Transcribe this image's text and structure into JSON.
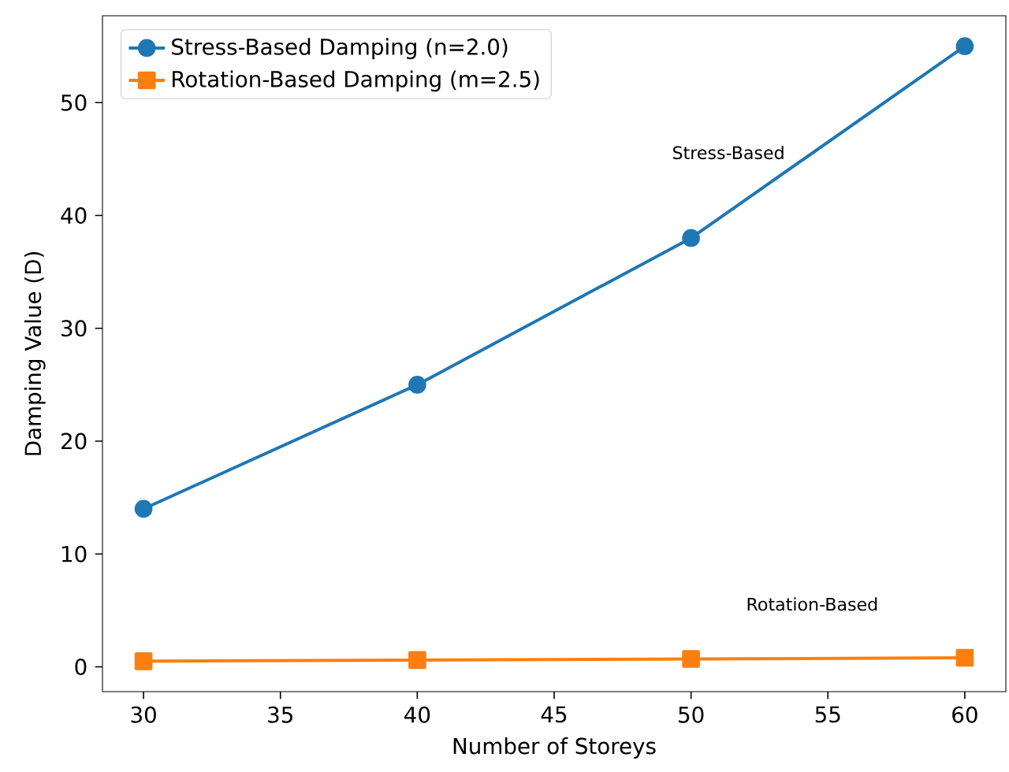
{
  "chart_data": {
    "type": "line",
    "xlabel": "Number of Storeys",
    "ylabel": "Damping Value (D)",
    "x": [
      30,
      40,
      50,
      60
    ],
    "series": [
      {
        "name": "Stress-Based Damping (n=2.0)",
        "color": "#1f77b4",
        "marker": "circle",
        "values": [
          14,
          25,
          38,
          55
        ]
      },
      {
        "name": "Rotation-Based Damping (m=2.5)",
        "color": "#ff7f0e",
        "marker": "square",
        "values": [
          0.5,
          0.6,
          0.7,
          0.8
        ]
      }
    ],
    "xlim": [
      28.5,
      61.5
    ],
    "ylim": [
      -2.2,
      57.7
    ],
    "xticks": [
      30,
      35,
      40,
      45,
      50,
      55,
      60
    ],
    "yticks": [
      0,
      10,
      20,
      30,
      40,
      50
    ],
    "annotations": [
      "Stress-Based",
      "Rotation-Based"
    ],
    "legend": "top left",
    "line_style": "solid",
    "grid": false
  }
}
